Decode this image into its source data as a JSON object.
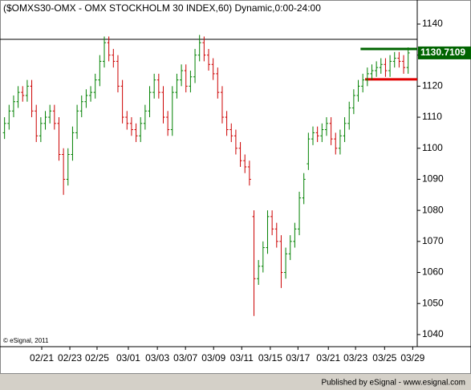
{
  "chart_data": {
    "type": "ohlc",
    "title": "($OMXS30-OMX - OMX STOCKHOLM 30 INDEX,60) Dynamic,0:00-24:00",
    "copyright": "© eSignal, 2011",
    "footer": "Published by eSignal - www.esignal.com",
    "up_color": "#008000",
    "down_color": "#cc0000",
    "series": {
      "open": [
        1105,
        1108,
        1112,
        1115,
        1118,
        1117,
        1120,
        1112,
        1104,
        1108,
        1110,
        1112,
        1108,
        1098,
        1090,
        1098,
        1105,
        1112,
        1115,
        1117,
        1118,
        1122,
        1128,
        1134,
        1130,
        1128,
        1120,
        1110,
        1108,
        1106,
        1104,
        1108,
        1112,
        1118,
        1122,
        1118,
        1110,
        1106,
        1118,
        1122,
        1125,
        1120,
        1123,
        1130,
        1134,
        1130,
        1127,
        1124,
        1118,
        1110,
        1106,
        1104,
        1100,
        1096,
        1094,
        1078,
        1058,
        1062,
        1068,
        1078,
        1074,
        1070,
        1060,
        1066,
        1070,
        1074,
        1084,
        1095,
        1103,
        1105,
        1104,
        1106,
        1108,
        1103,
        1100,
        1104,
        1108,
        1113,
        1117,
        1120,
        1122,
        1124,
        1125,
        1126,
        1127,
        1125,
        1128,
        1129,
        1128,
        1126
      ],
      "high": [
        1110,
        1114,
        1117,
        1120,
        1120,
        1122,
        1122,
        1114,
        1110,
        1112,
        1114,
        1114,
        1110,
        1100,
        1100,
        1107,
        1114,
        1117,
        1119,
        1120,
        1124,
        1130,
        1136,
        1136,
        1132,
        1130,
        1122,
        1112,
        1110,
        1108,
        1110,
        1114,
        1120,
        1124,
        1124,
        1120,
        1112,
        1120,
        1124,
        1127,
        1127,
        1125,
        1132,
        1136.5,
        1136,
        1132,
        1129,
        1126,
        1120,
        1112,
        1108,
        1106,
        1102,
        1098,
        1096,
        1080,
        1064,
        1070,
        1080,
        1080,
        1076,
        1072,
        1068,
        1072,
        1076,
        1086,
        1092,
        1105,
        1107,
        1107,
        1108,
        1110,
        1110,
        1105,
        1106,
        1110,
        1115,
        1119,
        1122,
        1124,
        1126,
        1127,
        1128,
        1129,
        1129,
        1130,
        1131,
        1131,
        1130,
        1132.5
      ],
      "low": [
        1103,
        1106,
        1110,
        1113,
        1115,
        1115,
        1110,
        1102,
        1102,
        1106,
        1108,
        1106,
        1096,
        1085,
        1088,
        1096,
        1103,
        1110,
        1113,
        1115,
        1116,
        1120,
        1126,
        1128,
        1126,
        1118,
        1108,
        1106,
        1104,
        1102,
        1102,
        1106,
        1110,
        1116,
        1116,
        1108,
        1104,
        1104,
        1116,
        1120,
        1118,
        1118,
        1121,
        1128,
        1128,
        1125,
        1122,
        1116,
        1108,
        1104,
        1102,
        1098,
        1094,
        1092,
        1088,
        1046,
        1056,
        1060,
        1066,
        1072,
        1068,
        1055,
        1058,
        1064,
        1068,
        1072,
        1082,
        1093,
        1101,
        1102,
        1102,
        1104,
        1101,
        1098,
        1098,
        1102,
        1106,
        1111,
        1115,
        1118,
        1120,
        1122,
        1123,
        1124,
        1123,
        1123,
        1126,
        1126,
        1124,
        1124
      ],
      "close": [
        1108,
        1112,
        1115,
        1118,
        1117,
        1120,
        1112,
        1104,
        1108,
        1110,
        1112,
        1108,
        1098,
        1090,
        1098,
        1105,
        1112,
        1115,
        1117,
        1118,
        1122,
        1128,
        1134,
        1130,
        1128,
        1120,
        1110,
        1108,
        1106,
        1104,
        1108,
        1112,
        1118,
        1122,
        1118,
        1110,
        1106,
        1118,
        1122,
        1125,
        1120,
        1123,
        1130,
        1134,
        1130,
        1127,
        1124,
        1118,
        1110,
        1106,
        1104,
        1100,
        1096,
        1094,
        1090,
        1058,
        1062,
        1068,
        1078,
        1074,
        1070,
        1060,
        1066,
        1070,
        1074,
        1084,
        1090,
        1103,
        1105,
        1104,
        1106,
        1108,
        1103,
        1100,
        1104,
        1108,
        1113,
        1117,
        1120,
        1122,
        1124,
        1125,
        1126,
        1127,
        1125,
        1128,
        1129,
        1128,
        1126,
        1130.7109
      ]
    },
    "reference_lines": [
      {
        "value": 1135.1,
        "color": "#000000",
        "from": -1
      },
      {
        "value": 1132,
        "color": "#006400",
        "from": 78.5
      },
      {
        "value": 1122.2,
        "color": "#e00000",
        "from": 79.5
      }
    ],
    "last_color": "#006400",
    "xlim": [
      -1,
      91
    ],
    "xticks": [
      {
        "value": 8.2,
        "label": "02/21"
      },
      {
        "value": 14.4,
        "label": "02/23"
      },
      {
        "value": 20.4,
        "label": "02/25"
      },
      {
        "value": 27.3,
        "label": "03/01"
      },
      {
        "value": 33.7,
        "label": "03/03"
      },
      {
        "value": 39.9,
        "label": "03/07"
      },
      {
        "value": 46.1,
        "label": "03/09"
      },
      {
        "value": 52.3,
        "label": "03/11"
      },
      {
        "value": 58.6,
        "label": "03/15"
      },
      {
        "value": 64.7,
        "label": "03/17"
      },
      {
        "value": 71.4,
        "label": "03/21"
      },
      {
        "value": 77.4,
        "label": "03/23"
      },
      {
        "value": 83.8,
        "label": "03/25"
      },
      {
        "value": 90,
        "label": "03/29"
      }
    ],
    "ylim": [
      1036.1,
      1147.75
    ],
    "yticks": [
      1040,
      1050,
      1060,
      1070,
      1080,
      1090,
      1100,
      1110,
      1120,
      1130,
      1140
    ]
  }
}
